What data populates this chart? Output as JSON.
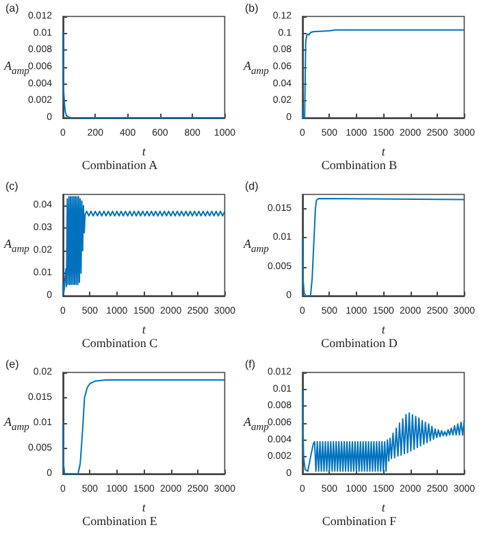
{
  "chart_data": [
    {
      "type": "line",
      "title": "Combination A",
      "xlabel": "t",
      "ylabel": "A$_{amp}$",
      "annotations": [
        "(a)"
      ],
      "color": "#0072bd",
      "xlim": [
        0,
        1000
      ],
      "xticks": [
        0,
        200,
        400,
        600,
        800,
        1000
      ],
      "ylim": [
        0,
        0.012
      ],
      "yticks": [
        0,
        0.002,
        0.004,
        0.006,
        0.008,
        0.01,
        0.012
      ],
      "x": [
        0,
        2,
        5,
        10,
        15,
        20,
        30,
        50,
        1000
      ],
      "values": [
        0.01,
        0.004,
        0.003,
        0.0015,
        0.0007,
        0.0003,
        0.0001,
        0,
        0
      ]
    },
    {
      "type": "line",
      "title": "Combination B",
      "xlabel": "t",
      "ylabel": "A$_{amp}$",
      "annotations": [
        "(b)"
      ],
      "color": "#0072bd",
      "xlim": [
        0,
        3000
      ],
      "xticks": [
        0,
        500,
        1000,
        1500,
        2000,
        2500,
        3000
      ],
      "ylim": [
        0,
        0.12
      ],
      "yticks": [
        0,
        0.02,
        0.04,
        0.06,
        0.08,
        0.1,
        0.12
      ],
      "x": [
        0,
        10,
        40,
        60,
        80,
        100,
        120,
        150,
        200,
        500,
        600,
        3000
      ],
      "values": [
        0.01,
        0,
        0,
        0.09,
        0.098,
        0.099,
        0.098,
        0.101,
        0.102,
        0.103,
        0.104,
        0.104
      ]
    },
    {
      "type": "line",
      "title": "Combination C",
      "xlabel": "t",
      "ylabel": "A$_{amp}$",
      "annotations": [
        "(c)"
      ],
      "color": "#0072bd",
      "xlim": [
        0,
        3000
      ],
      "xticks": [
        0,
        500,
        1000,
        1500,
        2000,
        2500,
        3000
      ],
      "ylim": [
        0,
        0.045
      ],
      "yticks": [
        0,
        0.01,
        0.02,
        0.03,
        0.04
      ],
      "x": [
        0,
        10,
        25,
        40,
        55,
        65,
        80,
        95,
        110,
        125,
        140,
        155,
        170,
        185,
        200,
        215,
        230,
        245,
        260,
        275,
        290,
        305,
        320,
        335,
        350,
        365,
        380,
        395,
        410,
        440,
        480,
        520,
        560,
        600,
        640,
        680,
        720,
        760,
        800,
        840,
        880,
        920,
        960,
        1000,
        1040,
        1080,
        1120,
        1160,
        1200,
        1240,
        1280,
        1320,
        1360,
        1400,
        1440,
        1480,
        1520,
        1560,
        1600,
        1640,
        1680,
        1720,
        1760,
        1800,
        1840,
        1880,
        1920,
        1960,
        2000,
        2040,
        2080,
        2120,
        2160,
        2200,
        2240,
        2280,
        2320,
        2360,
        2400,
        2440,
        2480,
        2520,
        2560,
        2600,
        2640,
        2680,
        2720,
        2760,
        2800,
        2840,
        2880,
        2920,
        2960,
        3000
      ],
      "values": [
        0.005,
        0.001,
        0.003,
        0.008,
        0.012,
        0.004,
        0.043,
        0.005,
        0.044,
        0.005,
        0.044,
        0.005,
        0.044,
        0.005,
        0.044,
        0.005,
        0.044,
        0.005,
        0.044,
        0.005,
        0.044,
        0.006,
        0.043,
        0.01,
        0.042,
        0.02,
        0.04,
        0.028,
        0.036,
        0.0375,
        0.0355,
        0.0375,
        0.0355,
        0.0375,
        0.0355,
        0.0375,
        0.0355,
        0.0375,
        0.0355,
        0.0375,
        0.0355,
        0.0375,
        0.0355,
        0.0375,
        0.0355,
        0.0375,
        0.0355,
        0.0375,
        0.0355,
        0.0375,
        0.0355,
        0.0375,
        0.0355,
        0.0375,
        0.0355,
        0.0375,
        0.0355,
        0.0375,
        0.0355,
        0.0375,
        0.0355,
        0.0375,
        0.0355,
        0.0375,
        0.0355,
        0.0375,
        0.0355,
        0.0375,
        0.0355,
        0.0375,
        0.0355,
        0.0375,
        0.0355,
        0.0375,
        0.0355,
        0.0375,
        0.0355,
        0.0375,
        0.0355,
        0.0375,
        0.0355,
        0.0375,
        0.0355,
        0.0375,
        0.0355,
        0.0375,
        0.0355,
        0.0375,
        0.0355,
        0.0375,
        0.0355,
        0.0375,
        0.0355,
        0.0375
      ]
    },
    {
      "type": "line",
      "title": "Combination D",
      "xlabel": "t",
      "ylabel": "A$_{amp}$",
      "annotations": [
        "(d)"
      ],
      "color": "#0072bd",
      "xlim": [
        0,
        3000
      ],
      "xticks": [
        0,
        500,
        1000,
        1500,
        2000,
        2500,
        3000
      ],
      "ylim": [
        0,
        0.0175
      ],
      "yticks": [
        0,
        0.005,
        0.01,
        0.015
      ],
      "x": [
        0,
        10,
        30,
        60,
        150,
        180,
        210,
        240,
        260,
        300,
        3000
      ],
      "values": [
        0.01,
        0.003,
        0.0005,
        0,
        0,
        0.003,
        0.009,
        0.015,
        0.0165,
        0.0168,
        0.0166
      ]
    },
    {
      "type": "line",
      "title": "Combination E",
      "xlabel": "t",
      "ylabel": "A$_{amp}$",
      "annotations": [
        "(e)"
      ],
      "color": "#0072bd",
      "xlim": [
        0,
        3000
      ],
      "xticks": [
        0,
        500,
        1000,
        1500,
        2000,
        2500,
        3000
      ],
      "ylim": [
        0,
        0.02
      ],
      "yticks": [
        0,
        0.005,
        0.01,
        0.015,
        0.02
      ],
      "x": [
        0,
        10,
        30,
        280,
        320,
        360,
        400,
        450,
        500,
        600,
        800,
        3000
      ],
      "values": [
        0.01,
        0.002,
        0,
        0,
        0.002,
        0.008,
        0.015,
        0.017,
        0.0178,
        0.0183,
        0.0185,
        0.0185
      ]
    },
    {
      "type": "line",
      "title": "Combination F",
      "xlabel": "t",
      "ylabel": "A$_{amp}$",
      "annotations": [
        "(f)"
      ],
      "color": "#0072bd",
      "xlim": [
        0,
        3000
      ],
      "xticks": [
        0,
        500,
        1000,
        1500,
        2000,
        2500,
        3000
      ],
      "ylim": [
        0,
        0.012
      ],
      "yticks": [
        0,
        0.002,
        0.004,
        0.006,
        0.008,
        0.01,
        0.012
      ],
      "x": [
        0,
        20,
        50,
        100,
        150,
        200,
        225,
        250,
        275,
        300,
        325,
        350,
        375,
        400,
        425,
        450,
        475,
        500,
        525,
        550,
        575,
        600,
        625,
        650,
        675,
        700,
        725,
        750,
        775,
        800,
        825,
        850,
        875,
        900,
        925,
        950,
        975,
        1000,
        1025,
        1050,
        1075,
        1100,
        1125,
        1150,
        1175,
        1200,
        1225,
        1250,
        1275,
        1300,
        1325,
        1350,
        1375,
        1400,
        1425,
        1450,
        1475,
        1500,
        1525,
        1550,
        1575,
        1600,
        1625,
        1650,
        1680,
        1710,
        1740,
        1770,
        1800,
        1830,
        1860,
        1890,
        1920,
        1950,
        1980,
        2010,
        2040,
        2070,
        2100,
        2130,
        2160,
        2190,
        2220,
        2250,
        2280,
        2310,
        2340,
        2370,
        2400,
        2430,
        2460,
        2490,
        2520,
        2550,
        2580,
        2610,
        2640,
        2670,
        2700,
        2730,
        2760,
        2790,
        2820,
        2850,
        2880,
        2910,
        2940,
        2970,
        3000
      ],
      "values": [
        0.01,
        0.002,
        0.0005,
        0.0003,
        0.002,
        0.0035,
        0.0038,
        0.0003,
        0.0038,
        0.0003,
        0.0038,
        0.0003,
        0.0038,
        0.0003,
        0.0038,
        0.0003,
        0.0038,
        0.0003,
        0.0038,
        0.0003,
        0.0038,
        0.0003,
        0.0038,
        0.0003,
        0.0038,
        0.0003,
        0.0038,
        0.0003,
        0.0038,
        0.0003,
        0.0038,
        0.0003,
        0.0038,
        0.0003,
        0.0038,
        0.0003,
        0.0038,
        0.0003,
        0.0038,
        0.0003,
        0.0038,
        0.0003,
        0.0038,
        0.0003,
        0.0038,
        0.0003,
        0.0038,
        0.0003,
        0.0038,
        0.0003,
        0.0038,
        0.0003,
        0.0038,
        0.0003,
        0.0038,
        0.0003,
        0.0038,
        0.0003,
        0.0038,
        0.0003,
        0.004,
        0.0015,
        0.0042,
        0.0018,
        0.0048,
        0.0019,
        0.0054,
        0.0021,
        0.006,
        0.0022,
        0.0065,
        0.0024,
        0.007,
        0.0025,
        0.0072,
        0.0027,
        0.007,
        0.0029,
        0.0068,
        0.0031,
        0.0066,
        0.0033,
        0.0063,
        0.0035,
        0.0061,
        0.0037,
        0.0059,
        0.0039,
        0.0056,
        0.0041,
        0.0053,
        0.0043,
        0.0052,
        0.0044,
        0.0051,
        0.0045,
        0.005,
        0.0045,
        0.0052,
        0.0046,
        0.0054,
        0.0046,
        0.0057,
        0.0046,
        0.0059,
        0.0046,
        0.0061,
        0.0046,
        0.0063
      ]
    }
  ]
}
